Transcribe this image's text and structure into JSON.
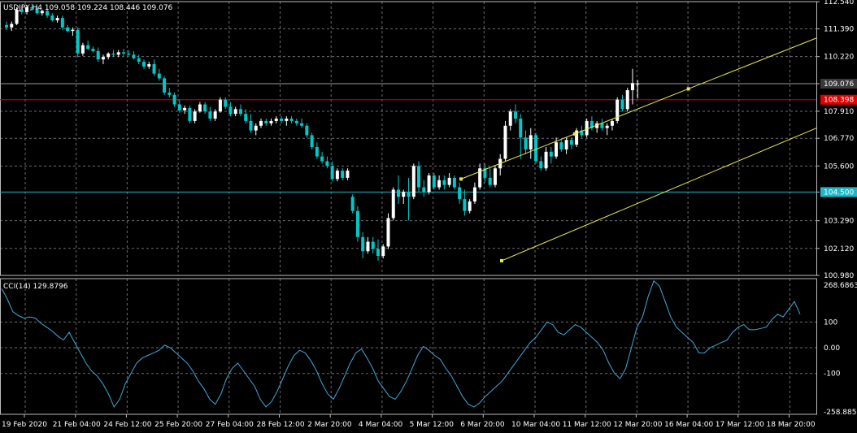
{
  "header": {
    "symbol": "USDJPY,H4",
    "ohlc": "109.058 109.224 108.446 109.076"
  },
  "indicator": {
    "label": "CCI(14) 129.8796"
  },
  "colors": {
    "background": "#000000",
    "grid": "#6b6b6b",
    "bull": "#ffffff",
    "bear": "#00c8c8",
    "cci_line": "#3fa9d8",
    "channel": "#e8e84a",
    "bid_line": "#9a9aa8",
    "red_line": "#e00000",
    "cyan_line": "#1fb8c8",
    "axis_text": "#ffffff"
  },
  "chart_data": [
    {
      "type": "candlestick",
      "title": "USDJPY,H4",
      "ylim": [
        100.98,
        112.54
      ],
      "y_ticks": [
        "112.540",
        "111.390",
        "110.220",
        "109.076",
        "107.910",
        "106.770",
        "105.600",
        "104.500",
        "103.290",
        "102.120",
        "100.980"
      ],
      "x_ticks": [
        "19 Feb 2020",
        "21 Feb 04:00",
        "24 Feb 12:00",
        "25 Feb 20:00",
        "27 Feb 04:00",
        "28 Feb 12:00",
        "2 Mar 20:00",
        "4 Mar 04:00",
        "5 Mar 12:00",
        "6 Mar 20:00",
        "10 Mar 04:00",
        "11 Mar 12:00",
        "12 Mar 20:00",
        "16 Mar 04:00",
        "17 Mar 12:00",
        "18 Mar 20:00"
      ],
      "hlines": [
        {
          "price": 109.076,
          "label": "109.076",
          "kind": "bid"
        },
        {
          "price": 108.398,
          "label": "108.398",
          "kind": "red"
        },
        {
          "price": 104.5,
          "label": "104.500",
          "kind": "cyan"
        }
      ],
      "channel": [
        {
          "p1": [
            "6 Mar 04:00",
            105.05
          ],
          "p2": [
            "19 Mar 00:00",
            111.0
          ]
        },
        {
          "p1": [
            "9 Mar 04:00",
            101.6
          ],
          "p2": [
            "19 Mar 00:00",
            107.2
          ]
        }
      ],
      "candles": [
        [
          111.55,
          111.7,
          111.35,
          111.45
        ],
        [
          111.45,
          111.7,
          111.3,
          111.6
        ],
        [
          111.6,
          112.3,
          111.55,
          112.2
        ],
        [
          112.2,
          112.35,
          112.0,
          112.1
        ],
        [
          112.1,
          112.4,
          112.0,
          112.3
        ],
        [
          112.3,
          112.45,
          112.15,
          112.25
        ],
        [
          112.25,
          112.35,
          112.0,
          112.05
        ],
        [
          112.05,
          112.2,
          111.95,
          112.15
        ],
        [
          112.15,
          112.25,
          111.85,
          111.95
        ],
        [
          111.95,
          112.05,
          111.7,
          111.75
        ],
        [
          111.75,
          111.95,
          111.65,
          111.85
        ],
        [
          111.85,
          111.95,
          111.35,
          111.45
        ],
        [
          111.45,
          111.55,
          111.25,
          111.3
        ],
        [
          111.3,
          111.45,
          111.1,
          111.35
        ],
        [
          111.35,
          111.45,
          110.2,
          110.35
        ],
        [
          110.35,
          110.8,
          110.25,
          110.7
        ],
        [
          110.7,
          110.9,
          110.5,
          110.55
        ],
        [
          110.55,
          110.65,
          110.4,
          110.45
        ],
        [
          110.45,
          110.6,
          110.0,
          110.1
        ],
        [
          110.1,
          110.3,
          109.9,
          110.2
        ],
        [
          110.2,
          110.4,
          110.1,
          110.35
        ],
        [
          110.35,
          110.5,
          110.2,
          110.3
        ],
        [
          110.3,
          110.5,
          110.2,
          110.4
        ],
        [
          110.4,
          110.55,
          110.25,
          110.35
        ],
        [
          110.35,
          110.5,
          110.25,
          110.3
        ],
        [
          110.3,
          110.45,
          110.1,
          110.15
        ],
        [
          110.15,
          110.3,
          109.9,
          110.0
        ],
        [
          110.0,
          110.1,
          109.7,
          109.8
        ],
        [
          109.8,
          110.0,
          109.7,
          109.9
        ],
        [
          109.9,
          110.1,
          109.4,
          109.5
        ],
        [
          109.5,
          109.7,
          109.2,
          109.3
        ],
        [
          109.3,
          109.4,
          108.6,
          108.7
        ],
        [
          108.7,
          108.9,
          108.5,
          108.6
        ],
        [
          108.6,
          108.7,
          108.1,
          108.2
        ],
        [
          108.2,
          108.4,
          107.85,
          107.95
        ],
        [
          107.95,
          108.15,
          107.8,
          108.05
        ],
        [
          108.05,
          108.15,
          107.4,
          107.5
        ],
        [
          107.5,
          108.0,
          107.4,
          107.9
        ],
        [
          107.9,
          108.3,
          107.85,
          108.2
        ],
        [
          108.2,
          108.3,
          107.8,
          107.9
        ],
        [
          107.9,
          108.1,
          107.5,
          107.6
        ],
        [
          107.6,
          108.0,
          107.5,
          107.9
        ],
        [
          107.9,
          108.5,
          107.85,
          108.4
        ],
        [
          108.4,
          108.5,
          108.0,
          108.1
        ],
        [
          108.1,
          108.3,
          107.7,
          107.8
        ],
        [
          107.8,
          108.1,
          107.7,
          108.0
        ],
        [
          108.0,
          108.2,
          107.7,
          107.8
        ],
        [
          107.8,
          108.0,
          107.4,
          107.5
        ],
        [
          107.5,
          107.8,
          107.0,
          107.1
        ],
        [
          107.1,
          107.4,
          106.9,
          107.3
        ],
        [
          107.3,
          107.6,
          107.2,
          107.5
        ],
        [
          107.5,
          107.6,
          107.3,
          107.4
        ],
        [
          107.4,
          107.6,
          107.3,
          107.5
        ],
        [
          107.5,
          107.7,
          107.4,
          107.6
        ],
        [
          107.6,
          107.7,
          107.4,
          107.5
        ],
        [
          107.5,
          107.7,
          107.3,
          107.6
        ],
        [
          107.6,
          107.7,
          107.4,
          107.5
        ],
        [
          107.5,
          107.6,
          107.3,
          107.4
        ],
        [
          107.4,
          107.6,
          107.2,
          107.3
        ],
        [
          107.3,
          107.4,
          106.8,
          106.9
        ],
        [
          106.9,
          107.0,
          106.3,
          106.4
        ],
        [
          106.4,
          106.6,
          105.9,
          106.0
        ],
        [
          106.0,
          106.2,
          105.7,
          105.8
        ],
        [
          105.8,
          106.0,
          105.5,
          105.6
        ],
        [
          105.6,
          105.8,
          104.95,
          105.05
        ],
        [
          105.05,
          105.5,
          104.95,
          105.4
        ],
        [
          105.4,
          105.5,
          105.0,
          105.1
        ],
        [
          105.1,
          105.5,
          105.0,
          105.4
        ],
        [
          104.3,
          104.4,
          103.6,
          103.7
        ],
        [
          103.7,
          103.9,
          102.4,
          102.6
        ],
        [
          102.6,
          102.8,
          101.7,
          102.0
        ],
        [
          102.0,
          102.6,
          101.9,
          102.4
        ],
        [
          102.4,
          102.6,
          101.9,
          102.1
        ],
        [
          102.1,
          102.5,
          101.6,
          101.8
        ],
        [
          101.8,
          102.3,
          101.7,
          102.2
        ],
        [
          102.2,
          103.6,
          102.1,
          103.4
        ],
        [
          103.4,
          104.7,
          103.3,
          104.6
        ],
        [
          104.6,
          105.2,
          104.0,
          104.3
        ],
        [
          104.3,
          104.6,
          104.0,
          104.5
        ],
        [
          104.5,
          105.1,
          103.3,
          104.3
        ],
        [
          104.3,
          105.7,
          104.2,
          105.6
        ],
        [
          105.6,
          105.8,
          104.5,
          104.7
        ],
        [
          104.7,
          105.0,
          104.3,
          104.5
        ],
        [
          104.5,
          105.3,
          104.4,
          105.2
        ],
        [
          105.2,
          105.3,
          104.6,
          104.7
        ],
        [
          104.7,
          105.2,
          104.6,
          105.0
        ],
        [
          105.0,
          105.2,
          104.6,
          104.8
        ],
        [
          104.8,
          105.3,
          104.7,
          105.1
        ],
        [
          105.1,
          105.2,
          104.6,
          104.7
        ],
        [
          104.7,
          104.9,
          104.0,
          104.2
        ],
        [
          104.2,
          104.6,
          103.5,
          103.7
        ],
        [
          103.7,
          104.2,
          103.6,
          104.1
        ],
        [
          104.1,
          104.9,
          104.0,
          104.7
        ],
        [
          104.7,
          105.7,
          104.6,
          105.5
        ],
        [
          105.5,
          105.7,
          104.9,
          105.1
        ],
        [
          105.1,
          105.5,
          104.7,
          104.8
        ],
        [
          104.8,
          105.6,
          104.7,
          105.5
        ],
        [
          105.5,
          106.1,
          105.2,
          105.9
        ],
        [
          105.9,
          107.5,
          105.8,
          107.3
        ],
        [
          107.3,
          108.0,
          107.1,
          107.9
        ],
        [
          107.9,
          108.2,
          107.4,
          107.6
        ],
        [
          107.6,
          107.8,
          105.9,
          106.8
        ],
        [
          106.8,
          107.1,
          106.1,
          106.3
        ],
        [
          106.3,
          107.2,
          105.9,
          106.9
        ],
        [
          106.9,
          107.0,
          105.7,
          105.8
        ],
        [
          105.8,
          106.0,
          105.4,
          105.5
        ],
        [
          105.5,
          106.4,
          105.4,
          106.2
        ],
        [
          106.2,
          106.4,
          105.7,
          106.0
        ],
        [
          106.0,
          106.8,
          105.9,
          106.6
        ],
        [
          106.6,
          106.7,
          106.2,
          106.3
        ],
        [
          106.3,
          106.8,
          106.1,
          106.7
        ],
        [
          106.7,
          106.8,
          106.3,
          106.5
        ],
        [
          106.5,
          107.2,
          106.4,
          107.1
        ],
        [
          107.1,
          107.3,
          106.8,
          106.9
        ],
        [
          106.9,
          107.6,
          106.8,
          107.5
        ],
        [
          107.5,
          107.7,
          107.1,
          107.2
        ],
        [
          107.2,
          107.5,
          107.0,
          107.4
        ],
        [
          107.4,
          107.6,
          107.1,
          107.2
        ],
        [
          107.2,
          107.4,
          106.9,
          107.3
        ],
        [
          107.3,
          107.6,
          107.1,
          107.5
        ],
        [
          107.5,
          108.5,
          107.4,
          108.4
        ],
        [
          108.4,
          108.6,
          107.9,
          108.0
        ],
        [
          108.0,
          108.9,
          107.9,
          108.8
        ],
        [
          108.8,
          109.7,
          108.2,
          109.1
        ],
        [
          109.058,
          109.224,
          108.446,
          109.076
        ]
      ]
    },
    {
      "type": "line",
      "title": "CCI(14) 129.8796",
      "ylim": [
        -258.885,
        268.6863
      ],
      "y_ticks": [
        "268.6863",
        "100",
        "0.00",
        "-100",
        "-258.885"
      ],
      "series": [
        {
          "values": [
            230,
            190,
            140,
            125,
            115,
            120,
            115,
            95,
            80,
            65,
            45,
            30,
            60,
            20,
            -20,
            -60,
            -90,
            -110,
            -140,
            -180,
            -230,
            -200,
            -140,
            -100,
            -60,
            -40,
            -30,
            -20,
            -10,
            10,
            0,
            -20,
            -40,
            -60,
            -90,
            -130,
            -160,
            -200,
            -220,
            -180,
            -120,
            -80,
            -60,
            -90,
            -120,
            -150,
            -200,
            -230,
            -210,
            -170,
            -120,
            -70,
            -30,
            -10,
            -20,
            -50,
            -90,
            -140,
            -180,
            -200,
            -160,
            -110,
            -60,
            -20,
            -5,
            -40,
            -80,
            -130,
            -160,
            -190,
            -200,
            -170,
            -130,
            -80,
            -30,
            5,
            -10,
            -30,
            -45,
            -80,
            -110,
            -150,
            -190,
            -220,
            -230,
            -215,
            -190,
            -170,
            -150,
            -130,
            -100,
            -70,
            -40,
            -10,
            20,
            40,
            70,
            100,
            90,
            60,
            50,
            70,
            90,
            80,
            60,
            40,
            20,
            -10,
            -60,
            -100,
            -120,
            -80,
            0,
            80,
            120,
            200,
            260,
            240,
            180,
            120,
            80,
            60,
            40,
            20,
            -20,
            -20,
            0,
            10,
            20,
            30,
            60,
            80,
            90,
            70,
            70,
            75,
            80,
            110,
            130,
            120,
            150,
            180,
            130
          ]
        }
      ]
    }
  ]
}
